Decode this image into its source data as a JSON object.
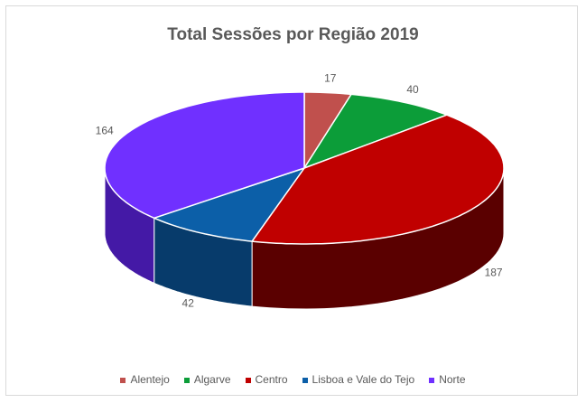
{
  "chart_data": {
    "type": "pie",
    "title": "Total Sessões por Região 2019",
    "categories": [
      "Alentejo",
      "Algarve",
      "Centro",
      "Lisboa e Vale do Tejo",
      "Norte"
    ],
    "values": [
      17,
      40,
      187,
      42,
      164
    ],
    "colors": [
      "#c0504d",
      "#0c9d39",
      "#c00000",
      "#0c5fa8",
      "#7030ff"
    ],
    "side_colors": [
      "#7a2523",
      "#056323",
      "#5a0000",
      "#073b6b",
      "#4419a6"
    ],
    "legend_position": "bottom",
    "data_labels": true,
    "style": "3d"
  }
}
